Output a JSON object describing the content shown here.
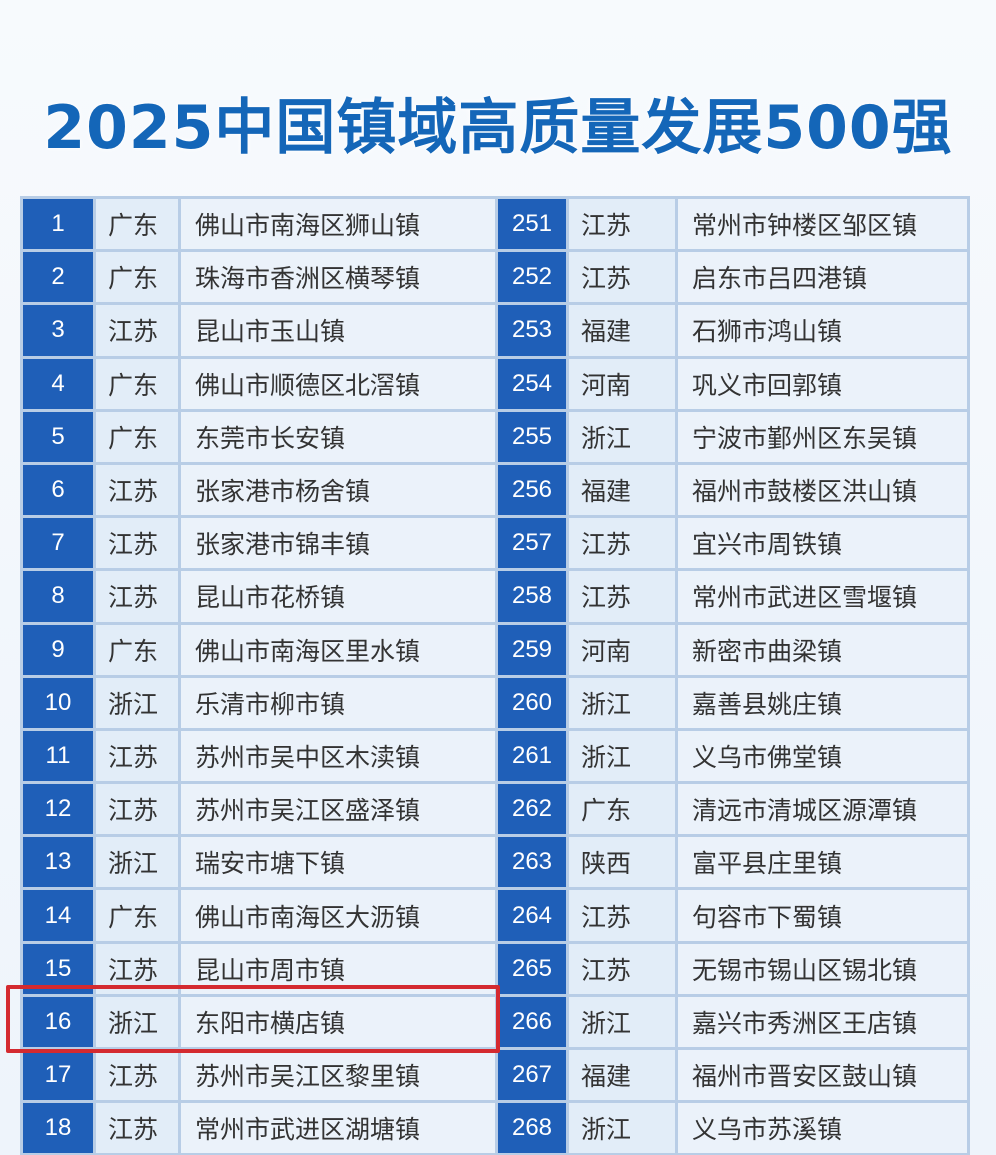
{
  "title": "2025中国镇域高质量发展500强",
  "colors": {
    "title": "#1466b8",
    "rank_bg": "#1f5fb8",
    "highlight": "#d42a30"
  },
  "left_rows": [
    {
      "rank": "1",
      "province": "广东",
      "town": "佛山市南海区狮山镇"
    },
    {
      "rank": "2",
      "province": "广东",
      "town": "珠海市香洲区横琴镇"
    },
    {
      "rank": "3",
      "province": "江苏",
      "town": "昆山市玉山镇"
    },
    {
      "rank": "4",
      "province": "广东",
      "town": "佛山市顺德区北滘镇"
    },
    {
      "rank": "5",
      "province": "广东",
      "town": "东莞市长安镇"
    },
    {
      "rank": "6",
      "province": "江苏",
      "town": "张家港市杨舍镇"
    },
    {
      "rank": "7",
      "province": "江苏",
      "town": "张家港市锦丰镇"
    },
    {
      "rank": "8",
      "province": "江苏",
      "town": "昆山市花桥镇"
    },
    {
      "rank": "9",
      "province": "广东",
      "town": "佛山市南海区里水镇"
    },
    {
      "rank": "10",
      "province": "浙江",
      "town": "乐清市柳市镇"
    },
    {
      "rank": "11",
      "province": "江苏",
      "town": "苏州市吴中区木渎镇"
    },
    {
      "rank": "12",
      "province": "江苏",
      "town": "苏州市吴江区盛泽镇"
    },
    {
      "rank": "13",
      "province": "浙江",
      "town": "瑞安市塘下镇"
    },
    {
      "rank": "14",
      "province": "广东",
      "town": "佛山市南海区大沥镇"
    },
    {
      "rank": "15",
      "province": "江苏",
      "town": "昆山市周市镇"
    },
    {
      "rank": "16",
      "province": "浙江",
      "town": "东阳市横店镇"
    },
    {
      "rank": "17",
      "province": "江苏",
      "town": "苏州市吴江区黎里镇"
    },
    {
      "rank": "18",
      "province": "江苏",
      "town": "常州市武进区湖塘镇"
    }
  ],
  "right_rows": [
    {
      "rank": "251",
      "province": "江苏",
      "town": "常州市钟楼区邹区镇"
    },
    {
      "rank": "252",
      "province": "江苏",
      "town": "启东市吕四港镇"
    },
    {
      "rank": "253",
      "province": "福建",
      "town": "石狮市鸿山镇"
    },
    {
      "rank": "254",
      "province": "河南",
      "town": "巩义市回郭镇"
    },
    {
      "rank": "255",
      "province": "浙江",
      "town": "宁波市鄞州区东吴镇"
    },
    {
      "rank": "256",
      "province": "福建",
      "town": "福州市鼓楼区洪山镇"
    },
    {
      "rank": "257",
      "province": "江苏",
      "town": "宜兴市周铁镇"
    },
    {
      "rank": "258",
      "province": "江苏",
      "town": "常州市武进区雪堰镇"
    },
    {
      "rank": "259",
      "province": "河南",
      "town": "新密市曲梁镇"
    },
    {
      "rank": "260",
      "province": "浙江",
      "town": "嘉善县姚庄镇"
    },
    {
      "rank": "261",
      "province": "浙江",
      "town": "义乌市佛堂镇"
    },
    {
      "rank": "262",
      "province": "广东",
      "town": "清远市清城区源潭镇"
    },
    {
      "rank": "263",
      "province": "陕西",
      "town": "富平县庄里镇"
    },
    {
      "rank": "264",
      "province": "江苏",
      "town": "句容市下蜀镇"
    },
    {
      "rank": "265",
      "province": "江苏",
      "town": "无锡市锡山区锡北镇"
    },
    {
      "rank": "266",
      "province": "浙江",
      "town": "嘉兴市秀洲区王店镇"
    },
    {
      "rank": "267",
      "province": "福建",
      "town": "福州市晋安区鼓山镇"
    },
    {
      "rank": "268",
      "province": "浙江",
      "town": "义乌市苏溪镇"
    }
  ]
}
